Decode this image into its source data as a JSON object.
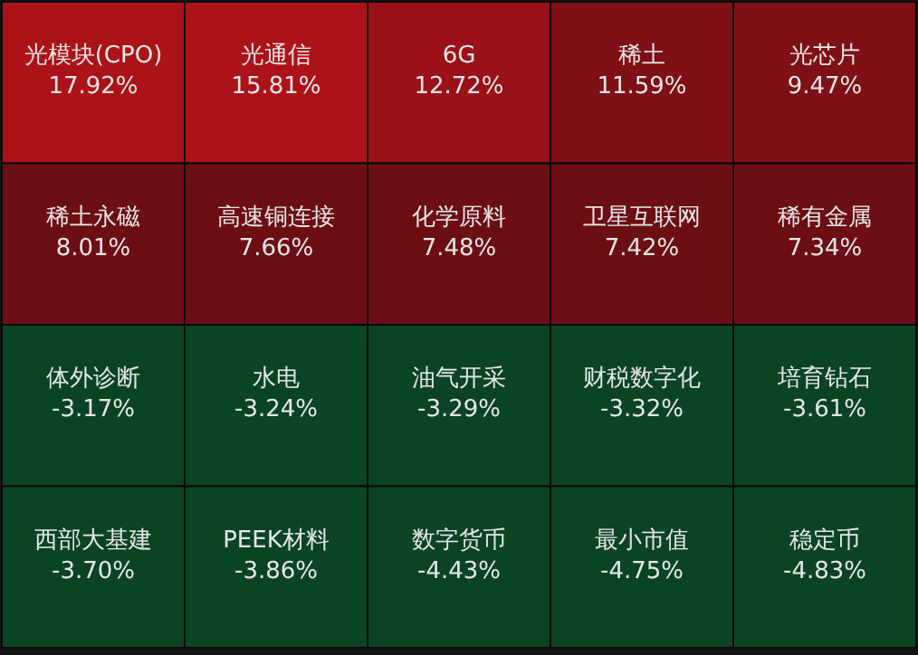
{
  "chart_data": {
    "type": "other",
    "categories": [
      "光模块(CPO)",
      "光通信",
      "6G",
      "稀土",
      "光芯片",
      "稀土永磁",
      "高速铜连接",
      "化学原料",
      "卫星互联网",
      "稀有金属",
      "体外诊断",
      "水电",
      "油气开采",
      "财税数字化",
      "培育钻石",
      "西部大基建",
      "PEEK材料",
      "数字货币",
      "最小市值",
      "稳定币"
    ],
    "values": [
      17.92,
      15.81,
      12.72,
      11.59,
      9.47,
      8.01,
      7.66,
      7.48,
      7.42,
      7.34,
      -3.17,
      -3.24,
      -3.29,
      -3.32,
      -3.61,
      -3.7,
      -3.86,
      -4.43,
      -4.75,
      -4.83
    ],
    "value_labels": [
      "17.92%",
      "15.81%",
      "12.72%",
      "11.59%",
      "9.47%",
      "8.01%",
      "7.66%",
      "7.48%",
      "7.42%",
      "7.34%",
      "-3.17%",
      "-3.24%",
      "-3.29%",
      "-3.32%",
      "-3.61%",
      "-3.70%",
      "-3.86%",
      "-4.43%",
      "-4.75%",
      "-4.83%"
    ]
  }
}
